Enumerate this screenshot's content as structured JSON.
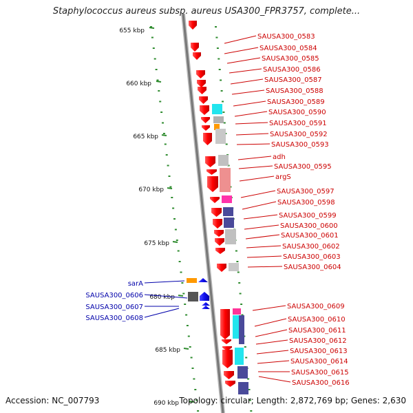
{
  "title": "Staphylococcus aureus subsp. aureus USA300_FPR3757, complete...",
  "footer": {
    "accession": "Accession: NC_007793",
    "summary": "Topology: circular; Length: 2,872,769 bp; Genes: 2,630"
  },
  "colors": {
    "forward_label": "#cc0000",
    "reverse_label": "#0000aa",
    "backbone": "#888888",
    "tick": "#2e8b2e"
  },
  "kbp_ticks": [
    "655 kbp",
    "660 kbp",
    "665 kbp",
    "670 kbp",
    "675 kbp",
    "680 kbp",
    "685 kbp",
    "690 kbp"
  ],
  "forward_genes": [
    {
      "label": "SAUSA300_0583"
    },
    {
      "label": "SAUSA300_0584"
    },
    {
      "label": "SAUSA300_0585"
    },
    {
      "label": "SAUSA300_0586"
    },
    {
      "label": "SAUSA300_0587"
    },
    {
      "label": "SAUSA300_0588"
    },
    {
      "label": "SAUSA300_0589"
    },
    {
      "label": "SAUSA300_0590"
    },
    {
      "label": "SAUSA300_0591"
    },
    {
      "label": "SAUSA300_0592"
    },
    {
      "label": "SAUSA300_0593"
    },
    {
      "label": "adh"
    },
    {
      "label": "SAUSA300_0595"
    },
    {
      "label": "argS"
    },
    {
      "label": "SAUSA300_0597"
    },
    {
      "label": "SAUSA300_0598"
    },
    {
      "label": "SAUSA300_0599"
    },
    {
      "label": "SAUSA300_0600"
    },
    {
      "label": "SAUSA300_0601"
    },
    {
      "label": "SAUSA300_0602"
    },
    {
      "label": "SAUSA300_0603"
    },
    {
      "label": "SAUSA300_0604"
    },
    {
      "label": "SAUSA300_0609"
    },
    {
      "label": "SAUSA300_0610"
    },
    {
      "label": "SAUSA300_0611"
    },
    {
      "label": "SAUSA300_0612"
    },
    {
      "label": "SAUSA300_0613"
    },
    {
      "label": "SAUSA300_0614"
    },
    {
      "label": "SAUSA300_0615"
    },
    {
      "label": "SAUSA300_0616"
    }
  ],
  "reverse_genes": [
    {
      "label": "sarA"
    },
    {
      "label": "SAUSA300_0606"
    },
    {
      "label": "SAUSA300_0607"
    },
    {
      "label": "SAUSA300_0608"
    }
  ]
}
